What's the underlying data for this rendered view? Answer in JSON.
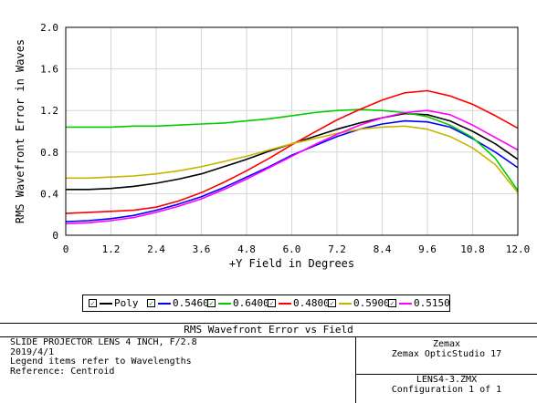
{
  "chart_data": {
    "type": "line",
    "title": "RMS Wavefront Error vs Field",
    "xlabel": "+Y Field in Degrees",
    "ylabel": "RMS Wavefront Error in Waves",
    "xlim": [
      0,
      12.0
    ],
    "ylim": [
      0,
      2.0
    ],
    "xticks": [
      "0",
      "1.2",
      "2.4",
      "3.6",
      "4.8",
      "6.0",
      "7.2",
      "8.4",
      "9.6",
      "10.8",
      "12.0"
    ],
    "yticks": [
      "0",
      "0.4",
      "0.8",
      "1.2",
      "1.6",
      "2.0"
    ],
    "grid": true,
    "legend_position": "bottom",
    "x": [
      0,
      0.6,
      1.2,
      1.8,
      2.4,
      3.0,
      3.6,
      4.2,
      4.8,
      5.4,
      6.0,
      6.6,
      7.2,
      7.8,
      8.4,
      9.0,
      9.6,
      10.2,
      10.8,
      11.4,
      12.0
    ],
    "series": [
      {
        "name": "Poly",
        "color": "#000000",
        "values": [
          0.44,
          0.44,
          0.45,
          0.47,
          0.5,
          0.54,
          0.59,
          0.66,
          0.73,
          0.81,
          0.88,
          0.95,
          1.02,
          1.08,
          1.13,
          1.17,
          1.16,
          1.1,
          1.0,
          0.88,
          0.73
        ]
      },
      {
        "name": "0.5460",
        "color": "#0000ff",
        "values": [
          0.13,
          0.14,
          0.16,
          0.19,
          0.24,
          0.3,
          0.37,
          0.46,
          0.56,
          0.66,
          0.77,
          0.86,
          0.95,
          1.02,
          1.07,
          1.1,
          1.09,
          1.04,
          0.93,
          0.8,
          0.65
        ]
      },
      {
        "name": "0.6400",
        "color": "#00cc00",
        "values": [
          1.04,
          1.04,
          1.04,
          1.05,
          1.05,
          1.06,
          1.07,
          1.08,
          1.1,
          1.12,
          1.15,
          1.18,
          1.2,
          1.21,
          1.2,
          1.18,
          1.14,
          1.06,
          0.94,
          0.74,
          0.43
        ]
      },
      {
        "name": "0.4800",
        "color": "#ff0000",
        "values": [
          0.21,
          0.22,
          0.23,
          0.24,
          0.27,
          0.33,
          0.41,
          0.51,
          0.62,
          0.74,
          0.87,
          0.99,
          1.11,
          1.21,
          1.3,
          1.37,
          1.39,
          1.34,
          1.26,
          1.15,
          1.03
        ]
      },
      {
        "name": "0.5900",
        "color": "#c8b400",
        "values": [
          0.55,
          0.55,
          0.56,
          0.57,
          0.59,
          0.62,
          0.66,
          0.71,
          0.76,
          0.82,
          0.88,
          0.93,
          0.98,
          1.02,
          1.04,
          1.05,
          1.02,
          0.95,
          0.84,
          0.68,
          0.41
        ]
      },
      {
        "name": "0.5150",
        "color": "#ff00ff",
        "values": [
          0.11,
          0.12,
          0.14,
          0.17,
          0.22,
          0.28,
          0.35,
          0.44,
          0.54,
          0.65,
          0.76,
          0.87,
          0.97,
          1.06,
          1.13,
          1.18,
          1.2,
          1.16,
          1.06,
          0.94,
          0.82
        ]
      }
    ]
  },
  "legend": {
    "check_mark": "✓",
    "items": [
      {
        "label": "Poly",
        "color": "#000000"
      },
      {
        "label": "0.5460",
        "color": "#0000ff"
      },
      {
        "label": "0.6400",
        "color": "#00cc00"
      },
      {
        "label": "0.4800",
        "color": "#ff0000"
      },
      {
        "label": "0.5900",
        "color": "#c8b400"
      },
      {
        "label": "0.5150",
        "color": "#ff00ff"
      }
    ]
  },
  "info": {
    "title": "RMS Wavefront Error vs Field",
    "lines": [
      "SLIDE PROJECTOR LENS 4 INCH, F/2.8",
      "2019/4/1",
      "Legend items refer to Wavelengths",
      "Reference: Centroid"
    ],
    "company": "Zemax",
    "product": "Zemax OpticStudio 17",
    "file": "LENS4-3.ZMX",
    "configuration": "Configuration 1 of 1"
  }
}
